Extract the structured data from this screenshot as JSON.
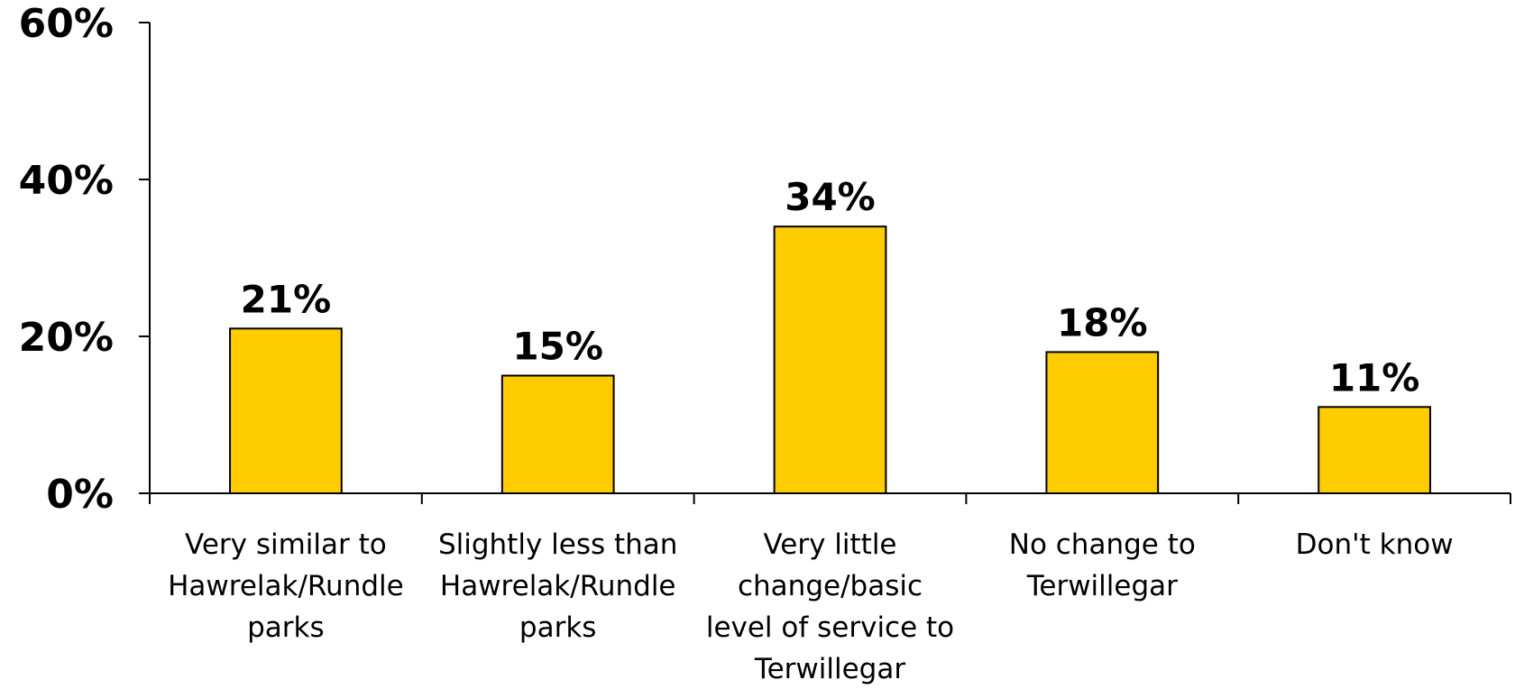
{
  "chart_data": {
    "type": "bar",
    "categories": [
      [
        "Very similar to",
        "Hawrelak/Rundle",
        "parks"
      ],
      [
        "Slightly less than",
        "Hawrelak/Rundle",
        "parks"
      ],
      [
        "Very little",
        "change/basic",
        "level of service to",
        "Terwillegar"
      ],
      [
        "No change to",
        "Terwillegar"
      ],
      [
        "Don't know"
      ]
    ],
    "values": [
      21,
      15,
      34,
      18,
      11
    ],
    "data_labels": [
      "21%",
      "15%",
      "34%",
      "18%",
      "11%"
    ],
    "ylim": [
      0,
      60
    ],
    "yticks": [
      "0%",
      "20%",
      "40%",
      "60%"
    ],
    "bar_color": "#FFCC00",
    "bar_edge_color": "#000000",
    "grid": false,
    "title": "",
    "xlabel": "",
    "ylabel": ""
  }
}
